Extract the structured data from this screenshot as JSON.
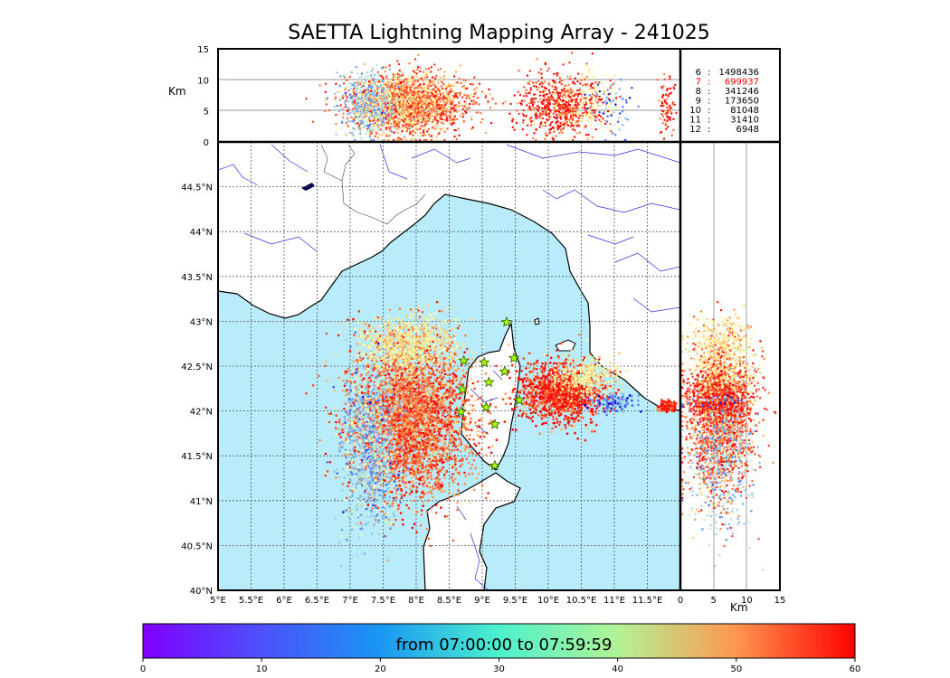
{
  "title": "SAETTA Lightning Mapping Array - 241025",
  "chart_data": {
    "type": "scatter",
    "title": "SAETTA Lightning Mapping Array - 241025",
    "map": {
      "lon_range": [
        5,
        12
      ],
      "lat_range": [
        40,
        45
      ],
      "lon_ticks": [
        "5°E",
        "5.5°E",
        "6°E",
        "6.5°E",
        "7°E",
        "7.5°E",
        "8°E",
        "8.5°E",
        "9°E",
        "9.5°E",
        "10°E",
        "10.5°E",
        "11°E",
        "11.5°E"
      ],
      "lat_ticks": [
        "40°N",
        "40.5°N",
        "41°N",
        "41.5°N",
        "42°N",
        "42.5°N",
        "43°N",
        "43.5°N",
        "44°N",
        "44.5°N"
      ],
      "grid": true
    },
    "altitude_axis": {
      "label": "Km",
      "range": [
        0,
        15
      ],
      "ticks": [
        "0",
        "5",
        "10",
        "15"
      ]
    },
    "station_counts": [
      {
        "stations": "6",
        "sources": "1498436",
        "highlight": false
      },
      {
        "stations": "7",
        "sources": "699937",
        "highlight": true
      },
      {
        "stations": "8",
        "sources": "341246",
        "highlight": false
      },
      {
        "stations": "9",
        "sources": "173650",
        "highlight": false
      },
      {
        "stations": "10",
        "sources": "81048",
        "highlight": false
      },
      {
        "stations": "11",
        "sources": "31410",
        "highlight": false
      },
      {
        "stations": "12",
        "sources": "6948",
        "highlight": false
      }
    ],
    "colorbar": {
      "label": "from 07:00:00 to 07:59:59",
      "range": [
        0,
        60
      ],
      "ticks": [
        "0",
        "10",
        "20",
        "30",
        "40",
        "50",
        "60"
      ],
      "colormap": "rainbow"
    },
    "clusters": [
      {
        "lon": 7.9,
        "lat": 41.9,
        "slon": 0.45,
        "slat": 0.42,
        "t": 52,
        "n": 3500
      },
      {
        "lon": 7.3,
        "lat": 41.6,
        "slon": 0.22,
        "slat": 0.45,
        "t": 18,
        "n": 1100
      },
      {
        "lon": 7.9,
        "lat": 42.75,
        "slon": 0.38,
        "slat": 0.15,
        "t": 38,
        "n": 700
      },
      {
        "lon": 10.2,
        "lat": 42.2,
        "slon": 0.32,
        "slat": 0.16,
        "t": 57,
        "n": 1300
      },
      {
        "lon": 10.6,
        "lat": 42.4,
        "slon": 0.25,
        "slat": 0.1,
        "t": 35,
        "n": 300
      },
      {
        "lon": 11.0,
        "lat": 42.1,
        "slon": 0.15,
        "slat": 0.05,
        "t": 12,
        "n": 120
      },
      {
        "lon": 11.8,
        "lat": 42.05,
        "slon": 0.07,
        "slat": 0.03,
        "t": 58,
        "n": 160
      }
    ],
    "stations": [
      {
        "lon": 9.37,
        "lat": 42.99
      },
      {
        "lon": 8.72,
        "lat": 42.56
      },
      {
        "lon": 9.03,
        "lat": 42.54
      },
      {
        "lon": 9.48,
        "lat": 42.59
      },
      {
        "lon": 9.34,
        "lat": 42.44
      },
      {
        "lon": 9.1,
        "lat": 42.32
      },
      {
        "lon": 8.7,
        "lat": 42.24
      },
      {
        "lon": 9.56,
        "lat": 42.12
      },
      {
        "lon": 9.06,
        "lat": 42.04
      },
      {
        "lon": 8.68,
        "lat": 41.99
      },
      {
        "lon": 9.19,
        "lat": 41.85
      },
      {
        "lon": 9.19,
        "lat": 41.39
      }
    ]
  }
}
